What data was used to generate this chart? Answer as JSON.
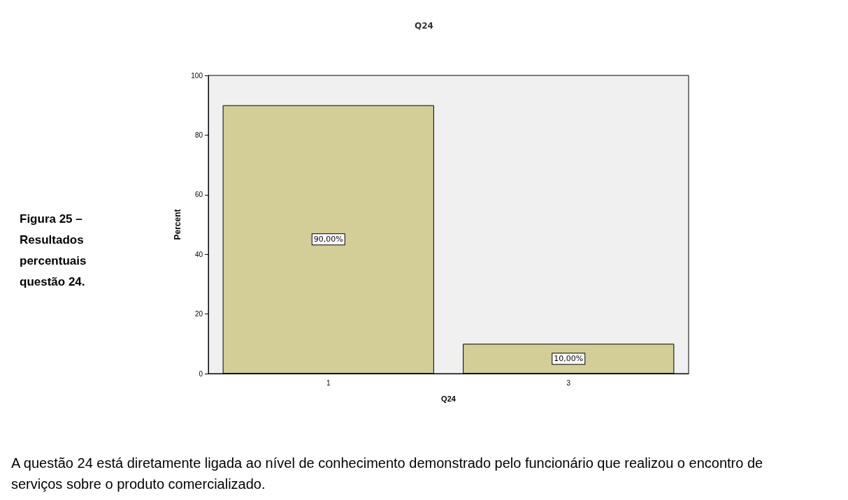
{
  "chart_data": {
    "type": "bar",
    "title": "Q24",
    "xlabel": "Q24",
    "ylabel": "Percent",
    "categories": [
      "1",
      "3"
    ],
    "series": [
      {
        "color": "#d3ce97",
        "values": [
          90,
          10
        ],
        "value_labels": [
          "90,00%",
          "10,00%"
        ]
      }
    ],
    "ylim": [
      0,
      100
    ],
    "yticks": [
      0,
      20,
      40,
      60,
      80,
      100
    ],
    "grid": false,
    "annotations": [
      "Figura 25 – Resultados percentuais questão 24.",
      "A questão 24 está diretamente ligada ao nível de conhecimento demonstrado pelo funcionário que realizou o encontro de serviços sobre o produto comercializado."
    ]
  }
}
